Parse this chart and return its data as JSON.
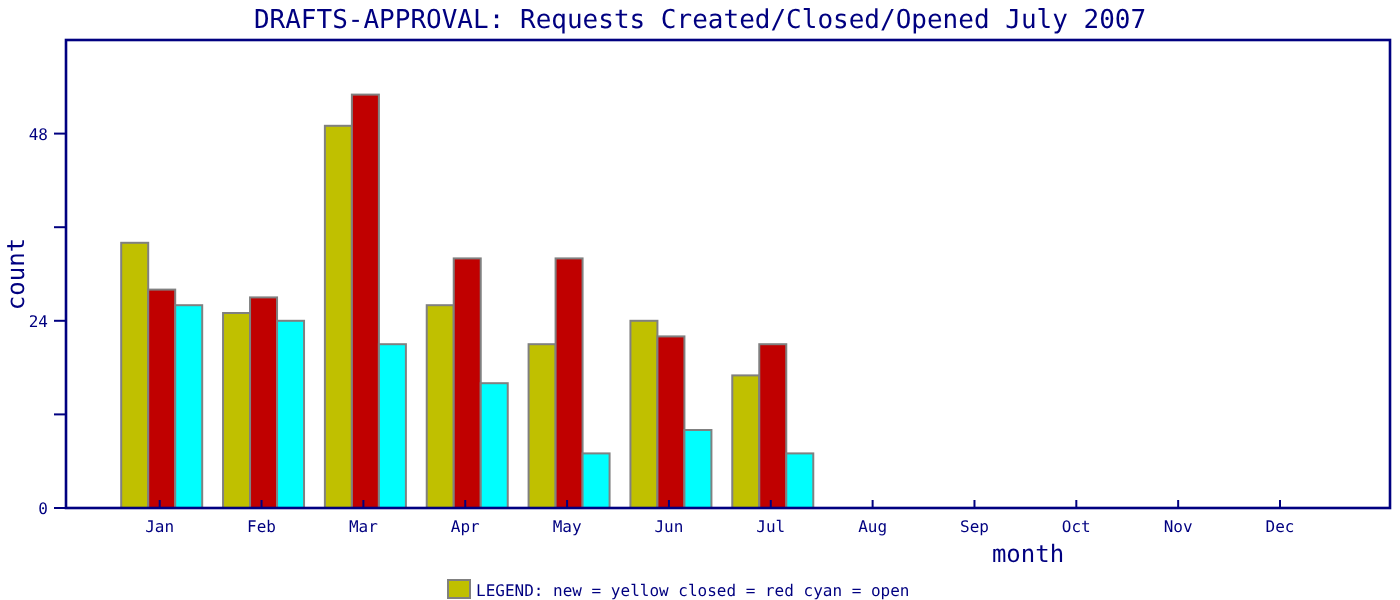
{
  "chart_data": {
    "type": "bar",
    "title": "DRAFTS-APPROVAL: Requests Created/Closed/Opened July 2007",
    "xlabel": "month",
    "ylabel": "count",
    "categories": [
      "Jan",
      "Feb",
      "Mar",
      "Apr",
      "May",
      "Jun",
      "Jul",
      "Aug",
      "Sep",
      "Oct",
      "Nov",
      "Dec"
    ],
    "series": [
      {
        "color": "#c0c000",
        "values": [
          34,
          25,
          49,
          26,
          21,
          24,
          17,
          null,
          null,
          null,
          null,
          null
        ]
      },
      {
        "color": "#c00000",
        "values": [
          28,
          27,
          53,
          32,
          32,
          22,
          21,
          null,
          null,
          null,
          null,
          null
        ]
      },
      {
        "color": "#00ffff",
        "values": [
          26,
          24,
          21,
          16,
          7,
          10,
          7,
          null,
          null,
          null,
          null,
          null
        ]
      }
    ],
    "ylim": [
      0,
      60
    ],
    "yticks": [
      0,
      {
        "value": 12,
        "label": null
      },
      24,
      {
        "value": 36,
        "label": null
      },
      48
    ],
    "annotations": [
      "LEGEND: new = yellow  closed = red  cyan = open"
    ]
  }
}
